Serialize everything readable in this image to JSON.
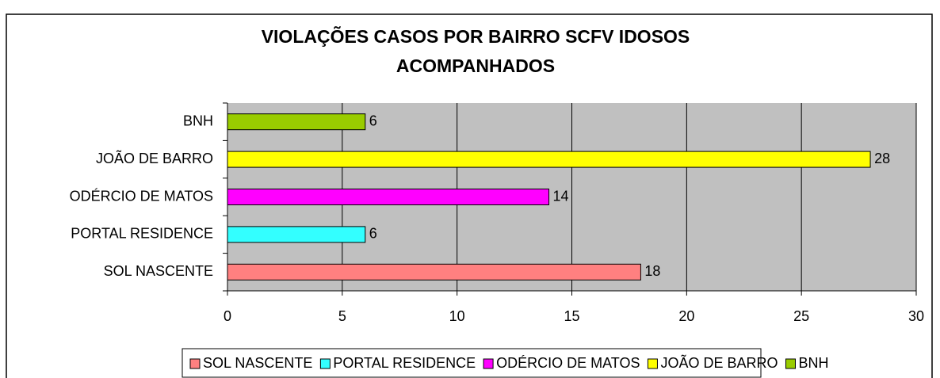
{
  "chart_data": {
    "type": "hbar",
    "title": [
      "VIOLAÇÕES CASOS POR BAIRRO SCFV IDOSOS",
      "ACOMPANHADOS"
    ],
    "categories": [
      "SOL NASCENTE",
      "PORTAL RESIDENCE",
      "ODÉRCIO DE MATOS",
      "JOÃO DE BARRO",
      "BNH"
    ],
    "values": [
      18,
      6,
      14,
      28,
      6
    ],
    "colors": [
      "#ff8080",
      "#33ffff",
      "#ff00ff",
      "#ffff00",
      "#99cc00"
    ],
    "xlim": [
      0,
      30
    ],
    "xticks": [
      0,
      5,
      10,
      15,
      20,
      25,
      30
    ],
    "grid": true,
    "legend": "bottom"
  }
}
